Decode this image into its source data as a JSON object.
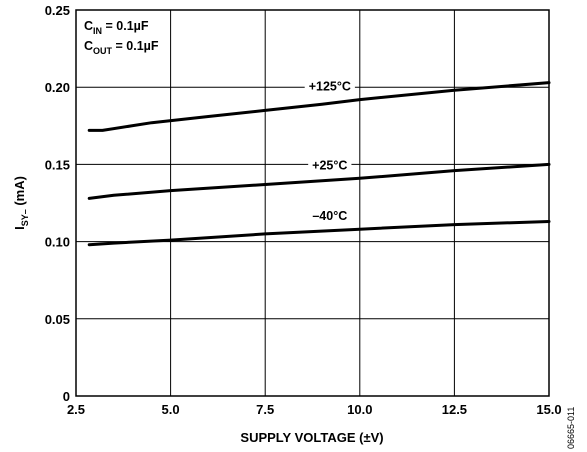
{
  "chart_data": {
    "type": "line",
    "xlabel": "SUPPLY VOLTAGE (±V)",
    "ylabel": {
      "main": "I",
      "sub": "SY–",
      "unit": " (mA)"
    },
    "xlim": [
      2.5,
      15.0
    ],
    "ylim": [
      0,
      0.25
    ],
    "xticks": [
      2.5,
      5.0,
      7.5,
      10.0,
      12.5,
      15.0
    ],
    "xtick_labels": [
      "2.5",
      "5.0",
      "7.5",
      "10.0",
      "12.5",
      "15.0"
    ],
    "yticks": [
      0,
      0.05,
      0.1,
      0.15,
      0.2,
      0.25
    ],
    "ytick_labels": [
      "0",
      "0.05",
      "0.10",
      "0.15",
      "0.20",
      "0.25"
    ],
    "grid": true,
    "series": [
      {
        "name": "+125°C",
        "x": [
          2.85,
          3.2,
          4.5,
          6.0,
          7.5,
          9.0,
          10.0,
          12.5,
          15.0
        ],
        "y": [
          0.172,
          0.172,
          0.177,
          0.181,
          0.185,
          0.189,
          0.192,
          0.198,
          0.203
        ]
      },
      {
        "name": "+25°C",
        "x": [
          2.85,
          3.5,
          5.0,
          7.5,
          10.0,
          12.5,
          15.0
        ],
        "y": [
          0.128,
          0.13,
          0.133,
          0.137,
          0.141,
          0.146,
          0.15
        ]
      },
      {
        "name": "–40°C",
        "x": [
          2.85,
          3.5,
          5.0,
          7.5,
          10.0,
          12.5,
          15.0
        ],
        "y": [
          0.098,
          0.099,
          0.101,
          0.105,
          0.108,
          0.111,
          0.113
        ]
      }
    ],
    "annotations": {
      "cin": {
        "main": "C",
        "sub": "IN",
        "rest": " = 0.1µF"
      },
      "cout": {
        "main": "C",
        "sub": "OUT",
        "rest": " = 0.1µF"
      }
    },
    "figure_code": "06665-011"
  }
}
